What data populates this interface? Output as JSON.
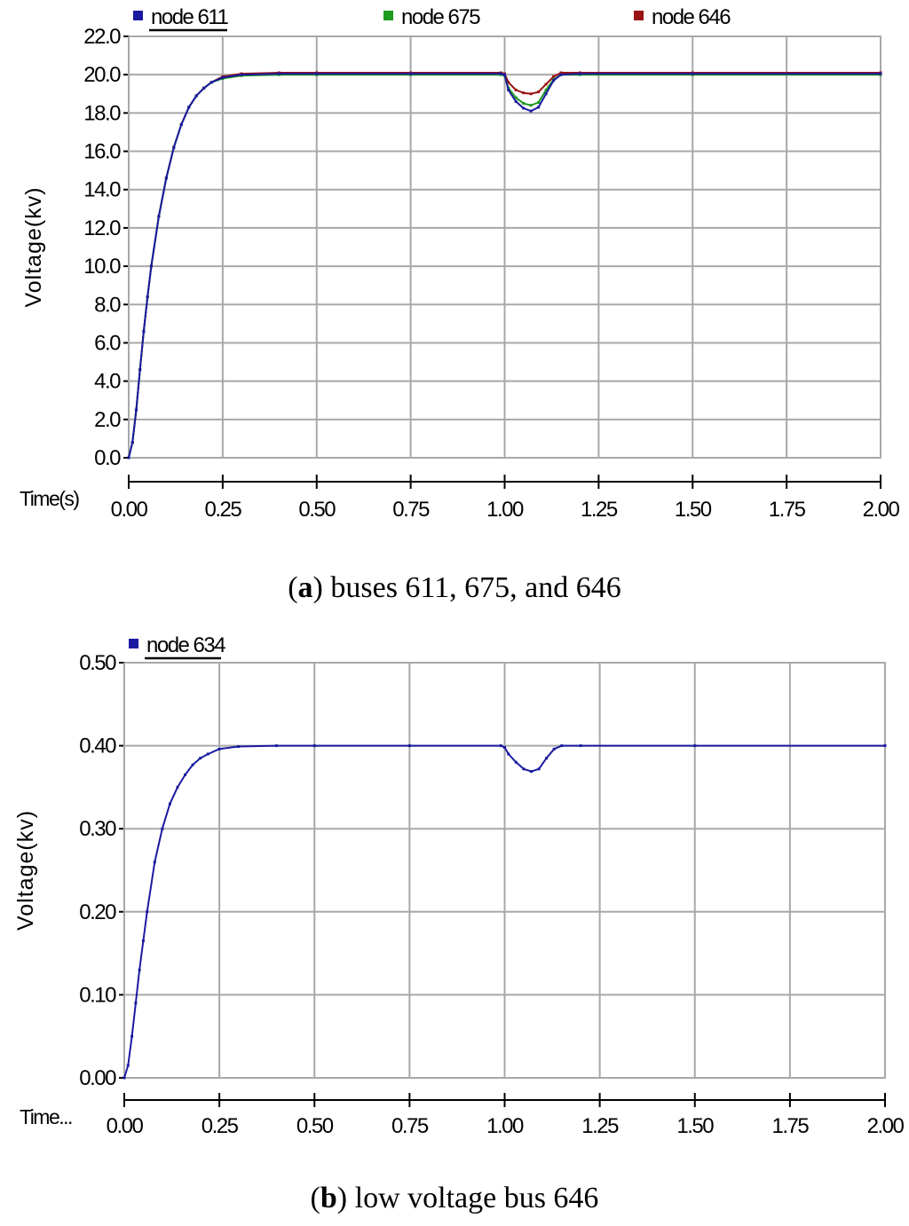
{
  "chart_data": [
    {
      "type": "line",
      "panel_letter": "a",
      "caption": "buses 611, 675, and 646",
      "ylabel": "Voltage(kv)",
      "xlabel": "Time(s)",
      "xlim": [
        0,
        2
      ],
      "ylim": [
        0,
        22
      ],
      "grid": true,
      "legend_position": "top",
      "x_ticks": [
        "0.00",
        "0.25",
        "0.50",
        "0.75",
        "1.00",
        "1.25",
        "1.50",
        "1.75",
        "2.00"
      ],
      "y_ticks": [
        "0.0",
        "2.0",
        "4.0",
        "6.0",
        "8.0",
        "10.0",
        "12.0",
        "14.0",
        "16.0",
        "18.0",
        "20.0",
        "22.0"
      ],
      "series": [
        {
          "name": "node 611",
          "color": "#1a1aa0",
          "x": [
            0,
            0.01,
            0.02,
            0.03,
            0.04,
            0.05,
            0.06,
            0.08,
            0.1,
            0.12,
            0.14,
            0.16,
            0.18,
            0.2,
            0.22,
            0.25,
            0.3,
            0.4,
            0.5,
            0.75,
            0.99,
            1.0,
            1.01,
            1.03,
            1.05,
            1.07,
            1.09,
            1.11,
            1.13,
            1.15,
            1.2,
            1.5,
            2.0
          ],
          "y": [
            0,
            0.8,
            2.5,
            4.6,
            6.6,
            8.4,
            10.0,
            12.6,
            14.6,
            16.2,
            17.4,
            18.3,
            18.9,
            19.3,
            19.6,
            19.85,
            20.0,
            20.05,
            20.05,
            20.05,
            20.05,
            20.0,
            19.2,
            18.6,
            18.25,
            18.1,
            18.3,
            19.0,
            19.7,
            20.0,
            20.05,
            20.05,
            20.05
          ]
        },
        {
          "name": "node 675",
          "color": "#1e9a1e",
          "x": [
            0,
            0.01,
            0.02,
            0.03,
            0.04,
            0.05,
            0.06,
            0.08,
            0.1,
            0.12,
            0.14,
            0.16,
            0.18,
            0.2,
            0.22,
            0.25,
            0.3,
            0.4,
            0.5,
            0.75,
            0.99,
            1.0,
            1.01,
            1.03,
            1.05,
            1.07,
            1.09,
            1.11,
            1.13,
            1.15,
            1.2,
            1.5,
            2.0
          ],
          "y": [
            0,
            0.8,
            2.5,
            4.6,
            6.6,
            8.4,
            10.0,
            12.6,
            14.6,
            16.2,
            17.4,
            18.3,
            18.9,
            19.3,
            19.6,
            19.8,
            19.95,
            20.0,
            20.0,
            20.0,
            20.0,
            19.95,
            19.3,
            18.8,
            18.5,
            18.4,
            18.55,
            19.2,
            19.75,
            20.0,
            20.0,
            20.0,
            20.0
          ]
        },
        {
          "name": "node 646",
          "color": "#9a1414",
          "x": [
            0,
            0.01,
            0.02,
            0.03,
            0.04,
            0.05,
            0.06,
            0.08,
            0.1,
            0.12,
            0.14,
            0.16,
            0.18,
            0.2,
            0.22,
            0.25,
            0.3,
            0.4,
            0.5,
            0.75,
            0.99,
            1.0,
            1.01,
            1.03,
            1.05,
            1.07,
            1.09,
            1.11,
            1.13,
            1.15,
            1.2,
            1.5,
            2.0
          ],
          "y": [
            0,
            0.8,
            2.5,
            4.6,
            6.6,
            8.4,
            10.0,
            12.6,
            14.6,
            16.2,
            17.4,
            18.3,
            18.9,
            19.3,
            19.6,
            19.9,
            20.05,
            20.1,
            20.1,
            20.1,
            20.1,
            20.05,
            19.6,
            19.2,
            19.05,
            19.0,
            19.1,
            19.5,
            19.9,
            20.1,
            20.1,
            20.1,
            20.1
          ]
        }
      ]
    },
    {
      "type": "line",
      "panel_letter": "b",
      "caption": "low voltage bus 646",
      "ylabel": "Voltage(kv)",
      "xlabel": "Time...",
      "xlim": [
        0,
        2
      ],
      "ylim": [
        0,
        0.5
      ],
      "grid": true,
      "legend_position": "top-left",
      "x_ticks": [
        "0.00",
        "0.25",
        "0.50",
        "0.75",
        "1.00",
        "1.25",
        "1.50",
        "1.75",
        "2.00"
      ],
      "y_ticks": [
        "0.00",
        "0.10",
        "0.20",
        "0.30",
        "0.40",
        "0.50"
      ],
      "series": [
        {
          "name": "node 634",
          "color": "#1a1aa0",
          "x": [
            0,
            0.01,
            0.02,
            0.03,
            0.04,
            0.05,
            0.06,
            0.08,
            0.1,
            0.12,
            0.14,
            0.16,
            0.18,
            0.2,
            0.22,
            0.25,
            0.3,
            0.4,
            0.5,
            0.75,
            0.99,
            1.0,
            1.01,
            1.03,
            1.05,
            1.07,
            1.09,
            1.11,
            1.13,
            1.15,
            1.2,
            1.5,
            2.0
          ],
          "y": [
            0,
            0.015,
            0.05,
            0.09,
            0.13,
            0.165,
            0.2,
            0.26,
            0.3,
            0.33,
            0.35,
            0.365,
            0.377,
            0.385,
            0.39,
            0.396,
            0.399,
            0.4,
            0.4,
            0.4,
            0.4,
            0.398,
            0.39,
            0.38,
            0.372,
            0.369,
            0.372,
            0.385,
            0.396,
            0.4,
            0.4,
            0.4,
            0.4
          ]
        }
      ]
    }
  ]
}
